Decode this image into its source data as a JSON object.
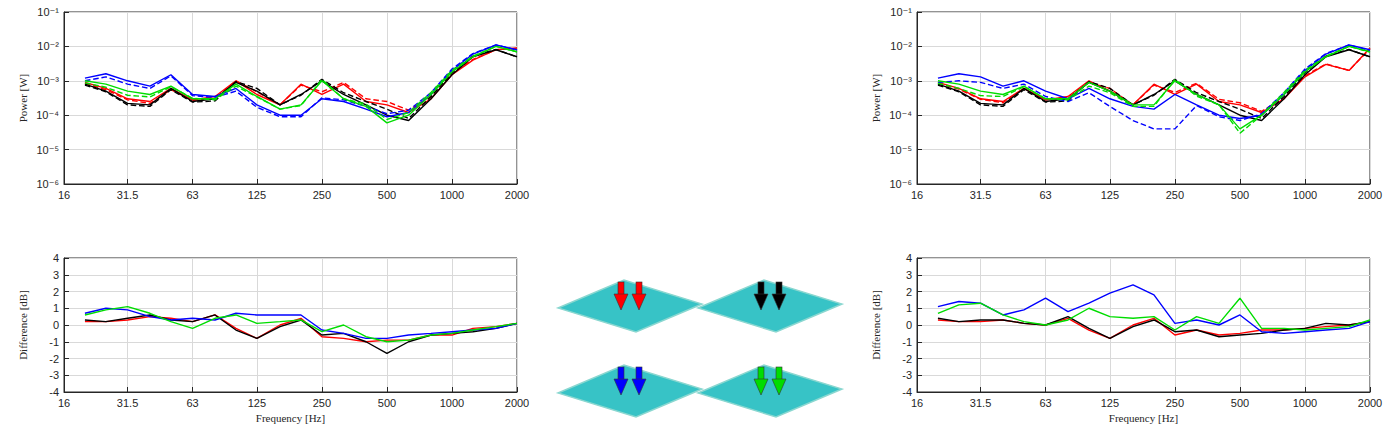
{
  "chart_data": [
    {
      "type": "line",
      "log": true,
      "grid": true,
      "ylabel": "Power [W]",
      "x": [
        20,
        25,
        31.5,
        40,
        50,
        63,
        80,
        100,
        125,
        160,
        200,
        250,
        315,
        400,
        500,
        630,
        800,
        1000,
        1250,
        1600,
        2000
      ],
      "xlim": [
        16,
        2000
      ],
      "xticks": [
        16,
        31.5,
        63,
        125,
        250,
        500,
        1000,
        2000
      ],
      "ylim": [
        1e-06,
        0.1
      ],
      "yticks": [
        {
          "value": 1e-06,
          "label": "10⁻⁶"
        },
        {
          "value": 1e-05,
          "label": "10⁻⁵"
        },
        {
          "value": 0.0001,
          "label": "10⁻⁴"
        },
        {
          "value": 0.001,
          "label": "10⁻³"
        },
        {
          "value": 0.01,
          "label": "10⁻²"
        },
        {
          "value": 0.1,
          "label": "10⁻¹"
        }
      ],
      "series": [
        {
          "color": "#ff0000",
          "line_style": "solid",
          "values": [
            0.0009,
            0.0006,
            0.0003,
            0.00025,
            0.0006,
            0.00028,
            0.00035,
            0.001,
            0.0004,
            0.0002,
            0.0008,
            0.0004,
            0.0008,
            0.00025,
            0.0002,
            0.00012,
            0.0003,
            0.0015,
            0.004,
            0.008,
            0.009
          ]
        },
        {
          "color": "#ff0000",
          "line_style": "dashed",
          "values": [
            0.00085,
            0.00055,
            0.00028,
            0.00022,
            0.00055,
            0.00027,
            0.0003,
            0.001,
            0.00048,
            0.0002,
            0.00075,
            0.00048,
            0.0009,
            0.0003,
            0.00025,
            0.00014,
            0.00035,
            0.0017,
            0.0042,
            0.008,
            0.0088
          ]
        },
        {
          "color": "#000000",
          "line_style": "solid",
          "values": [
            0.0008,
            0.0005,
            0.00022,
            0.0002,
            0.0006,
            0.00025,
            0.0003,
            0.0009,
            0.0005,
            0.0002,
            0.0004,
            0.001,
            0.0004,
            0.0002,
            0.0001,
            7e-05,
            0.0003,
            0.0015,
            0.005,
            0.008,
            0.005
          ]
        },
        {
          "color": "#000000",
          "line_style": "dashed",
          "values": [
            0.00075,
            0.00048,
            0.0002,
            0.00018,
            0.00055,
            0.00024,
            0.00026,
            0.00095,
            0.0006,
            0.0002,
            0.00038,
            0.0011,
            0.00045,
            0.00025,
            0.00015,
            8e-05,
            0.00035,
            0.0017,
            0.0052,
            0.0082,
            0.0049
          ]
        },
        {
          "color": "#0000ff",
          "line_style": "solid",
          "values": [
            0.0012,
            0.0016,
            0.001,
            0.0007,
            0.0015,
            0.0004,
            0.00035,
            0.0006,
            0.0002,
            0.0001,
            0.0001,
            0.0003,
            0.00025,
            0.00015,
            9e-05,
            0.00012,
            0.0004,
            0.002,
            0.006,
            0.011,
            0.008
          ]
        },
        {
          "color": "#0000ff",
          "line_style": "dashed",
          "values": [
            0.001,
            0.0013,
            0.0008,
            0.0006,
            0.0014,
            0.00037,
            0.00033,
            0.0005,
            0.00017,
            9e-05,
            9e-05,
            0.00032,
            0.00028,
            0.00018,
            0.00011,
            0.00014,
            0.00045,
            0.0022,
            0.0062,
            0.011,
            0.0078
          ]
        },
        {
          "color": "#00dd00",
          "line_style": "solid",
          "values": [
            0.001,
            0.0008,
            0.0005,
            0.0004,
            0.0007,
            0.0003,
            0.0003,
            0.0008,
            0.00035,
            0.00015,
            0.0002,
            0.001,
            0.0003,
            0.00018,
            6e-05,
            0.0001,
            0.0004,
            0.0018,
            0.005,
            0.01,
            0.007
          ]
        },
        {
          "color": "#00dd00",
          "line_style": "dashed",
          "values": [
            0.00087,
            0.00065,
            0.00038,
            0.00034,
            0.00067,
            0.00031,
            0.00028,
            0.0007,
            0.00034,
            0.00015,
            0.00019,
            0.0011,
            0.0003,
            0.00021,
            7.5e-05,
            0.00012,
            0.00046,
            0.002,
            0.0052,
            0.01,
            0.0069
          ]
        }
      ]
    },
    {
      "type": "line",
      "log": "x",
      "grid": true,
      "xlabel": "Frequency [Hz]",
      "ylabel": "Difference [dB]",
      "x": [
        20,
        25,
        31.5,
        40,
        50,
        63,
        80,
        100,
        125,
        160,
        200,
        250,
        315,
        400,
        500,
        630,
        800,
        1000,
        1250,
        1600,
        2000
      ],
      "xlim": [
        16,
        2000
      ],
      "xticks": [
        16,
        31.5,
        63,
        125,
        250,
        500,
        1000,
        2000
      ],
      "ylim": [
        -4,
        4
      ],
      "yticks": [
        -4,
        -3,
        -2,
        -1,
        0,
        1,
        2,
        3,
        4
      ],
      "series": [
        {
          "color": "#ff0000",
          "line_style": "solid",
          "values": [
            0.2,
            0.2,
            0.3,
            0.5,
            0.4,
            0.2,
            0.6,
            -0.2,
            -0.8,
            0.0,
            0.4,
            -0.7,
            -0.8,
            -1.0,
            -0.9,
            -0.9,
            -0.6,
            -0.6,
            -0.2,
            -0.1,
            0.1
          ]
        },
        {
          "color": "#000000",
          "line_style": "solid",
          "values": [
            0.3,
            0.2,
            0.4,
            0.6,
            0.3,
            0.2,
            0.6,
            -0.3,
            -0.8,
            -0.1,
            0.3,
            -0.6,
            -0.5,
            -1.0,
            -1.7,
            -1.0,
            -0.6,
            -0.5,
            -0.4,
            -0.2,
            0.1
          ]
        },
        {
          "color": "#0000ff",
          "line_style": "solid",
          "values": [
            0.7,
            1.0,
            0.9,
            0.5,
            0.3,
            0.4,
            0.3,
            0.7,
            0.6,
            0.6,
            0.6,
            -0.3,
            -0.5,
            -0.8,
            -0.8,
            -0.6,
            -0.5,
            -0.4,
            -0.3,
            -0.2,
            0.1
          ]
        },
        {
          "color": "#00dd00",
          "line_style": "solid",
          "values": [
            0.6,
            0.9,
            1.1,
            0.7,
            0.2,
            -0.2,
            0.4,
            0.6,
            0.1,
            0.2,
            0.3,
            -0.4,
            0.0,
            -0.7,
            -1.0,
            -0.9,
            -0.6,
            -0.5,
            -0.3,
            -0.1,
            0.1
          ]
        }
      ]
    },
    {
      "type": "line",
      "log": true,
      "grid": true,
      "ylabel": "Power [W]",
      "x": [
        20,
        25,
        31.5,
        40,
        50,
        63,
        80,
        100,
        125,
        160,
        200,
        250,
        315,
        400,
        500,
        630,
        800,
        1000,
        1250,
        1600,
        2000
      ],
      "xlim": [
        16,
        2000
      ],
      "xticks": [
        16,
        31.5,
        63,
        125,
        250,
        500,
        1000,
        2000
      ],
      "ylim": [
        1e-06,
        0.1
      ],
      "yticks": [
        {
          "value": 1e-06,
          "label": "10⁻⁶"
        },
        {
          "value": 1e-05,
          "label": "10⁻⁵"
        },
        {
          "value": 0.0001,
          "label": "10⁻⁴"
        },
        {
          "value": 0.001,
          "label": "10⁻³"
        },
        {
          "value": 0.01,
          "label": "10⁻²"
        },
        {
          "value": 0.1,
          "label": "10⁻¹"
        }
      ],
      "series": [
        {
          "color": "#ff0000",
          "line_style": "solid",
          "values": [
            0.0009,
            0.0006,
            0.0003,
            0.00025,
            0.0006,
            0.00028,
            0.00035,
            0.001,
            0.0005,
            0.0002,
            0.0008,
            0.0004,
            0.0008,
            0.00025,
            0.0002,
            0.00012,
            0.0003,
            0.0013,
            0.003,
            0.002,
            0.009
          ]
        },
        {
          "color": "#ff0000",
          "line_style": "dashed",
          "values": [
            0.00085,
            0.00057,
            0.00029,
            0.00023,
            0.0006,
            0.00028,
            0.00032,
            0.0009,
            0.0006,
            0.0002,
            0.00075,
            0.00046,
            0.00085,
            0.00029,
            0.00023,
            0.00013,
            0.00032,
            0.0014,
            0.0031,
            0.002,
            0.0086
          ]
        },
        {
          "color": "#000000",
          "line_style": "solid",
          "values": [
            0.0008,
            0.0005,
            0.00022,
            0.0002,
            0.0006,
            0.00025,
            0.0003,
            0.0009,
            0.0005,
            0.0002,
            0.0004,
            0.001,
            0.0004,
            0.0002,
            0.0001,
            7e-05,
            0.0003,
            0.0015,
            0.005,
            0.008,
            0.005
          ]
        },
        {
          "color": "#000000",
          "line_style": "dashed",
          "values": [
            0.00075,
            0.00048,
            0.0002,
            0.00018,
            0.00055,
            0.00024,
            0.00026,
            0.00095,
            0.0006,
            0.0002,
            0.00038,
            0.0011,
            0.00045,
            0.00025,
            0.00015,
            8e-05,
            0.00035,
            0.0017,
            0.0052,
            0.0082,
            0.0049
          ]
        },
        {
          "color": "#0000ff",
          "line_style": "solid",
          "values": [
            0.0012,
            0.0016,
            0.0013,
            0.0007,
            0.001,
            0.0005,
            0.0003,
            0.0006,
            0.0003,
            0.00018,
            0.00015,
            0.0004,
            0.0002,
            0.0001,
            8e-05,
            0.0001,
            0.0004,
            0.002,
            0.006,
            0.011,
            0.008
          ]
        },
        {
          "color": "#0000ff",
          "line_style": "dashed",
          "values": [
            0.0009,
            0.001,
            0.0009,
            0.0006,
            0.0008,
            0.00035,
            0.00025,
            0.00045,
            0.00018,
            7e-05,
            4e-05,
            4e-05,
            0.00019,
            9e-05,
            7e-05,
            0.00011,
            0.00045,
            0.0022,
            0.0062,
            0.011,
            0.0076
          ]
        },
        {
          "color": "#00dd00",
          "line_style": "solid",
          "values": [
            0.001,
            0.0008,
            0.0005,
            0.0004,
            0.0007,
            0.0003,
            0.0003,
            0.0009,
            0.0005,
            0.0002,
            0.0002,
            0.001,
            0.0004,
            0.0002,
            4e-05,
            0.0001,
            0.0004,
            0.0018,
            0.005,
            0.01,
            0.007
          ]
        },
        {
          "color": "#00dd00",
          "line_style": "dashed",
          "values": [
            0.00085,
            0.0006,
            0.00037,
            0.00035,
            0.00067,
            0.0003,
            0.00028,
            0.0007,
            0.00045,
            0.00018,
            0.00018,
            0.0011,
            0.00036,
            0.0002,
            3e-05,
            0.0001,
            0.00046,
            0.002,
            0.0052,
            0.01,
            0.0068
          ]
        }
      ]
    },
    {
      "type": "line",
      "log": "x",
      "grid": true,
      "xlabel": "Frequency [Hz]",
      "ylabel": "Difference [dB]",
      "x": [
        20,
        25,
        31.5,
        40,
        50,
        63,
        80,
        100,
        125,
        160,
        200,
        250,
        315,
        400,
        500,
        630,
        800,
        1000,
        1250,
        1600,
        2000
      ],
      "xlim": [
        16,
        2000
      ],
      "xticks": [
        16,
        31.5,
        63,
        125,
        250,
        500,
        1000,
        2000
      ],
      "ylim": [
        -4,
        4
      ],
      "yticks": [
        -4,
        -3,
        -2,
        -1,
        0,
        1,
        2,
        3,
        4
      ],
      "series": [
        {
          "color": "#ff0000",
          "line_style": "solid",
          "values": [
            0.3,
            0.2,
            0.2,
            0.3,
            0.1,
            0.0,
            0.4,
            -0.3,
            -0.8,
            0.0,
            0.4,
            -0.6,
            -0.3,
            -0.6,
            -0.5,
            -0.3,
            -0.3,
            -0.2,
            -0.1,
            0.0,
            0.2
          ]
        },
        {
          "color": "#000000",
          "line_style": "solid",
          "values": [
            0.4,
            0.2,
            0.3,
            0.3,
            0.1,
            0.0,
            0.5,
            -0.2,
            -0.8,
            -0.1,
            0.3,
            -0.4,
            -0.3,
            -0.7,
            -0.6,
            -0.5,
            -0.3,
            -0.2,
            0.1,
            0.0,
            0.2
          ]
        },
        {
          "color": "#0000ff",
          "line_style": "solid",
          "values": [
            1.1,
            1.4,
            1.3,
            0.6,
            0.9,
            1.6,
            0.8,
            1.3,
            1.9,
            2.4,
            1.8,
            0.1,
            0.3,
            0.0,
            0.6,
            -0.4,
            -0.5,
            -0.4,
            -0.3,
            -0.2,
            0.2
          ]
        },
        {
          "color": "#00dd00",
          "line_style": "solid",
          "values": [
            0.7,
            1.2,
            1.3,
            0.6,
            0.2,
            0.0,
            0.3,
            1.0,
            0.5,
            0.4,
            0.5,
            -0.3,
            0.5,
            0.1,
            1.6,
            -0.2,
            -0.2,
            -0.3,
            -0.2,
            -0.1,
            0.3
          ]
        }
      ]
    }
  ]
}
